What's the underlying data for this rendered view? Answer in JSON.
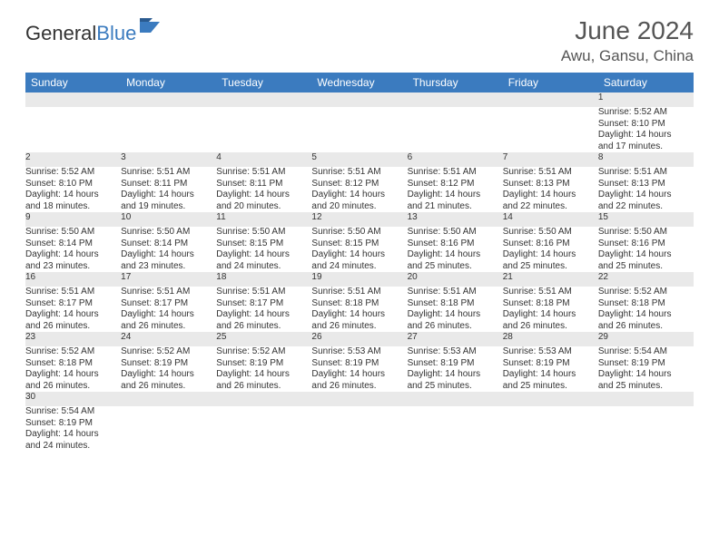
{
  "logo": {
    "part1": "General",
    "part2": "Blue"
  },
  "title": "June 2024",
  "location": "Awu, Gansu, China",
  "colors": {
    "header_bg": "#3b7bbf",
    "header_text": "#ffffff",
    "daynum_bg": "#e9e9e9",
    "border": "#3b7bbf",
    "text": "#333333",
    "muted": "#555555",
    "page_bg": "#ffffff"
  },
  "weekdays": [
    "Sunday",
    "Monday",
    "Tuesday",
    "Wednesday",
    "Thursday",
    "Friday",
    "Saturday"
  ],
  "weeks": [
    [
      null,
      null,
      null,
      null,
      null,
      null,
      {
        "n": "1",
        "sr": "5:52 AM",
        "ss": "8:10 PM",
        "dl": "14 hours and 17 minutes."
      }
    ],
    [
      {
        "n": "2",
        "sr": "5:52 AM",
        "ss": "8:10 PM",
        "dl": "14 hours and 18 minutes."
      },
      {
        "n": "3",
        "sr": "5:51 AM",
        "ss": "8:11 PM",
        "dl": "14 hours and 19 minutes."
      },
      {
        "n": "4",
        "sr": "5:51 AM",
        "ss": "8:11 PM",
        "dl": "14 hours and 20 minutes."
      },
      {
        "n": "5",
        "sr": "5:51 AM",
        "ss": "8:12 PM",
        "dl": "14 hours and 20 minutes."
      },
      {
        "n": "6",
        "sr": "5:51 AM",
        "ss": "8:12 PM",
        "dl": "14 hours and 21 minutes."
      },
      {
        "n": "7",
        "sr": "5:51 AM",
        "ss": "8:13 PM",
        "dl": "14 hours and 22 minutes."
      },
      {
        "n": "8",
        "sr": "5:51 AM",
        "ss": "8:13 PM",
        "dl": "14 hours and 22 minutes."
      }
    ],
    [
      {
        "n": "9",
        "sr": "5:50 AM",
        "ss": "8:14 PM",
        "dl": "14 hours and 23 minutes."
      },
      {
        "n": "10",
        "sr": "5:50 AM",
        "ss": "8:14 PM",
        "dl": "14 hours and 23 minutes."
      },
      {
        "n": "11",
        "sr": "5:50 AM",
        "ss": "8:15 PM",
        "dl": "14 hours and 24 minutes."
      },
      {
        "n": "12",
        "sr": "5:50 AM",
        "ss": "8:15 PM",
        "dl": "14 hours and 24 minutes."
      },
      {
        "n": "13",
        "sr": "5:50 AM",
        "ss": "8:16 PM",
        "dl": "14 hours and 25 minutes."
      },
      {
        "n": "14",
        "sr": "5:50 AM",
        "ss": "8:16 PM",
        "dl": "14 hours and 25 minutes."
      },
      {
        "n": "15",
        "sr": "5:50 AM",
        "ss": "8:16 PM",
        "dl": "14 hours and 25 minutes."
      }
    ],
    [
      {
        "n": "16",
        "sr": "5:51 AM",
        "ss": "8:17 PM",
        "dl": "14 hours and 26 minutes."
      },
      {
        "n": "17",
        "sr": "5:51 AM",
        "ss": "8:17 PM",
        "dl": "14 hours and 26 minutes."
      },
      {
        "n": "18",
        "sr": "5:51 AM",
        "ss": "8:17 PM",
        "dl": "14 hours and 26 minutes."
      },
      {
        "n": "19",
        "sr": "5:51 AM",
        "ss": "8:18 PM",
        "dl": "14 hours and 26 minutes."
      },
      {
        "n": "20",
        "sr": "5:51 AM",
        "ss": "8:18 PM",
        "dl": "14 hours and 26 minutes."
      },
      {
        "n": "21",
        "sr": "5:51 AM",
        "ss": "8:18 PM",
        "dl": "14 hours and 26 minutes."
      },
      {
        "n": "22",
        "sr": "5:52 AM",
        "ss": "8:18 PM",
        "dl": "14 hours and 26 minutes."
      }
    ],
    [
      {
        "n": "23",
        "sr": "5:52 AM",
        "ss": "8:18 PM",
        "dl": "14 hours and 26 minutes."
      },
      {
        "n": "24",
        "sr": "5:52 AM",
        "ss": "8:19 PM",
        "dl": "14 hours and 26 minutes."
      },
      {
        "n": "25",
        "sr": "5:52 AM",
        "ss": "8:19 PM",
        "dl": "14 hours and 26 minutes."
      },
      {
        "n": "26",
        "sr": "5:53 AM",
        "ss": "8:19 PM",
        "dl": "14 hours and 26 minutes."
      },
      {
        "n": "27",
        "sr": "5:53 AM",
        "ss": "8:19 PM",
        "dl": "14 hours and 25 minutes."
      },
      {
        "n": "28",
        "sr": "5:53 AM",
        "ss": "8:19 PM",
        "dl": "14 hours and 25 minutes."
      },
      {
        "n": "29",
        "sr": "5:54 AM",
        "ss": "8:19 PM",
        "dl": "14 hours and 25 minutes."
      }
    ],
    [
      {
        "n": "30",
        "sr": "5:54 AM",
        "ss": "8:19 PM",
        "dl": "14 hours and 24 minutes."
      },
      null,
      null,
      null,
      null,
      null,
      null
    ]
  ],
  "labels": {
    "sunrise": "Sunrise:",
    "sunset": "Sunset:",
    "daylight": "Daylight:"
  }
}
